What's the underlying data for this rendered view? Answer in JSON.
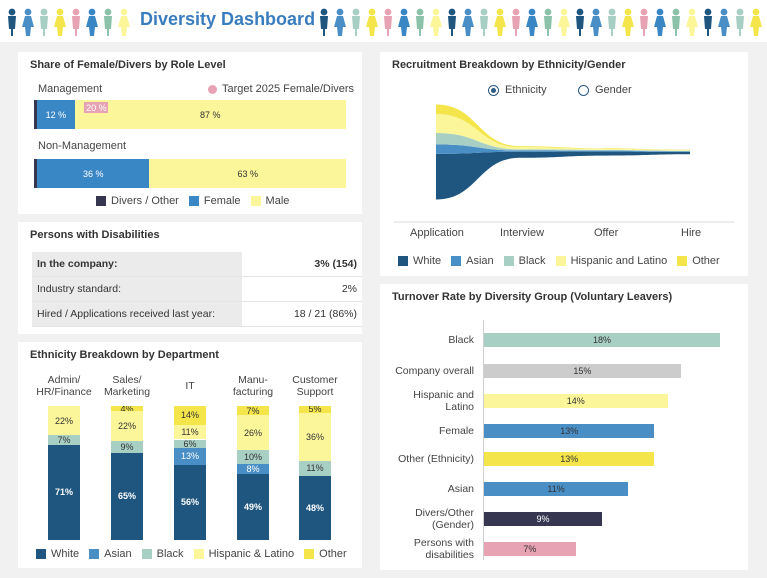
{
  "header": {
    "title": "Diversity Dashboard"
  },
  "colors": {
    "white": "#1f567f",
    "asian": "#4a8ec6",
    "black": "#a8cfc3",
    "hispanic": "#fbf69a",
    "other": "#f3e54a",
    "divers": "#363650",
    "female": "#3a87c6",
    "male": "#fbf69a",
    "pink": "#e7a2b4",
    "grey": "#cccccc",
    "title": "#3a7dbf"
  },
  "role_panel": {
    "title": "Share of Female/Divers by Role Level",
    "target_label": "Target 2025 Female/Divers",
    "rows": [
      {
        "label": "Management",
        "divers": 1,
        "female": 12,
        "male": 87,
        "target": 20,
        "female_label": "12 %",
        "male_label": "87 %",
        "target_label": "20 %"
      },
      {
        "label": "Non-Management",
        "divers": 1,
        "female": 36,
        "male": 63,
        "female_label": "36 %",
        "male_label": "63 %"
      }
    ],
    "legend": [
      "Divers / Other",
      "Female",
      "Male"
    ]
  },
  "disabilities": {
    "title": "Persons with Disabilities",
    "rows": [
      {
        "label": "In the company:",
        "value": "3% (154)"
      },
      {
        "label": "Industry standard:",
        "value": "2%"
      },
      {
        "label": "Hired / Applications received last year:",
        "value": "18 / 21 (86%)"
      }
    ]
  },
  "ethnicity_dept": {
    "title": "Ethnicity Breakdown by Department",
    "legend": [
      "White",
      "Asian",
      "Black",
      "Hispanic & Latino",
      "Other"
    ]
  },
  "recruitment": {
    "title": "Recruitment Breakdown by Ethnicity/Gender",
    "options": [
      "Ethnicity",
      "Gender"
    ],
    "stages": [
      "Application",
      "Interview",
      "Offer",
      "Hire"
    ],
    "legend": [
      "White",
      "Asian",
      "Black",
      "Hispanic and Latino",
      "Other"
    ]
  },
  "turnover": {
    "title": "Turnover Rate by Diversity Group (Voluntary Leavers)"
  },
  "chart_data": [
    {
      "type": "bar",
      "title": "Share of Female/Divers by Role Level",
      "categories": [
        "Management",
        "Non-Management"
      ],
      "series": [
        {
          "name": "Divers / Other",
          "values": [
            1,
            1
          ]
        },
        {
          "name": "Female",
          "values": [
            12,
            36
          ]
        },
        {
          "name": "Male",
          "values": [
            87,
            63
          ]
        }
      ],
      "target": {
        "name": "Target 2025 Female/Divers",
        "values": [
          20,
          null
        ]
      }
    },
    {
      "type": "bar",
      "title": "Ethnicity Breakdown by Department",
      "categories": [
        "Admin/\nHR/Finance",
        "Sales/\nMarketing",
        "IT",
        "Manu-\nfacturing",
        "Customer\nSupport"
      ],
      "series": [
        {
          "name": "White",
          "values": [
            71,
            65,
            56,
            49,
            48
          ]
        },
        {
          "name": "Asian",
          "values": [
            0,
            0,
            13,
            8,
            0
          ]
        },
        {
          "name": "Black",
          "values": [
            7,
            9,
            6,
            10,
            11
          ]
        },
        {
          "name": "Hispanic & Latino",
          "values": [
            22,
            22,
            11,
            26,
            36
          ]
        },
        {
          "name": "Other",
          "values": [
            0,
            4,
            14,
            7,
            5
          ]
        }
      ],
      "labels": [
        [
          "71%",
          "",
          "7%",
          "22%",
          ""
        ],
        [
          "65%",
          "",
          "9%",
          "22%",
          "4%"
        ],
        [
          "56%",
          "13%",
          "6%",
          "11%",
          "14%"
        ],
        [
          "49%",
          "8%",
          "10%",
          "26%",
          "7%"
        ],
        [
          "48%",
          "",
          "11%",
          "36%",
          "5%"
        ]
      ]
    },
    {
      "type": "area",
      "title": "Recruitment Breakdown by Ethnicity/Gender",
      "x": [
        "Application",
        "Interview",
        "Offer",
        "Hire"
      ],
      "series": [
        {
          "name": "White",
          "values": [
            48,
            40,
            30,
            20
          ]
        },
        {
          "name": "Asian",
          "values": [
            10,
            8,
            7,
            6
          ]
        },
        {
          "name": "Black",
          "values": [
            12,
            8,
            6,
            5
          ]
        },
        {
          "name": "Hispanic and Latino",
          "values": [
            20,
            14,
            7,
            6
          ]
        },
        {
          "name": "Other",
          "values": [
            10,
            6,
            4,
            3
          ]
        }
      ]
    },
    {
      "type": "bar",
      "title": "Turnover Rate by Diversity Group (Voluntary Leavers)",
      "categories": [
        "Black",
        "Company overall",
        "Hispanic and\nLatino",
        "Female",
        "Other (Ethnicity)",
        "Asian",
        "Divers/Other\n(Gender)",
        "Persons with\ndisabilities"
      ],
      "values": [
        18,
        15,
        14,
        13,
        13,
        11,
        9,
        7
      ],
      "labels": [
        "18%",
        "15%",
        "14%",
        "13%",
        "13%",
        "11%",
        "9%",
        "7%"
      ],
      "colors": [
        "#a8cfc3",
        "#cccccc",
        "#fbf69a",
        "#4a8ec6",
        "#f3e54a",
        "#4a8ec6",
        "#363650",
        "#e7a2b4"
      ]
    }
  ]
}
